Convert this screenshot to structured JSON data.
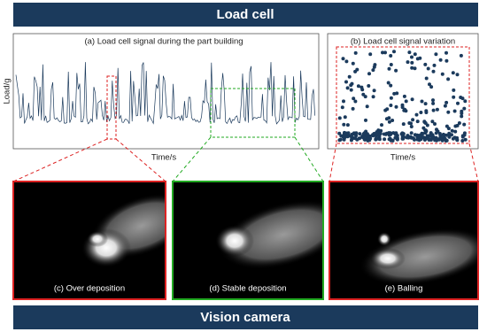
{
  "header": {
    "title": "Load cell"
  },
  "panel_a": {
    "title": "(a) Load cell signal during the part building",
    "y_label": "Load/g",
    "x_label": "Time/s"
  },
  "panel_b": {
    "title": "(b) Load cell signal variation",
    "x_label": "Time/s"
  },
  "images": [
    {
      "caption": "(c) Over deposition"
    },
    {
      "caption": "(d) Stable deposition"
    },
    {
      "caption": "(e) Balling"
    }
  ],
  "footer": {
    "title": "Vision camera"
  }
}
